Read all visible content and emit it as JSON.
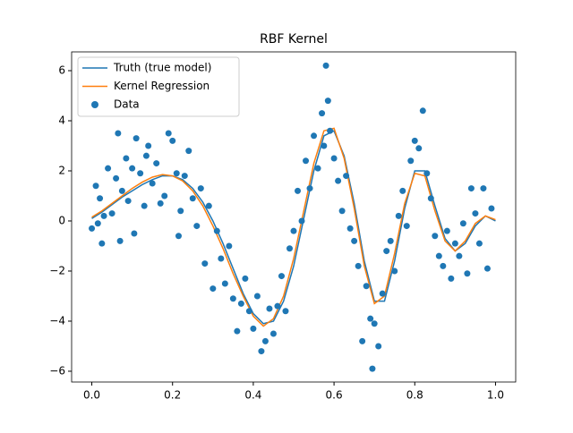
{
  "chart_data": {
    "type": "line",
    "title": "RBF Kernel",
    "xlim": [
      -0.05,
      1.05
    ],
    "ylim": [
      -6.43,
      6.75
    ],
    "xticks": [
      {
        "value": 0,
        "label": "0.0"
      },
      0.2,
      0.4,
      0.6,
      0.8,
      {
        "value": 1,
        "label": "1.0"
      }
    ],
    "yticks": [
      {
        "value": -6,
        "label": "−6"
      },
      {
        "value": -4,
        "label": "−4"
      },
      {
        "value": -2,
        "label": "−2"
      },
      0,
      2,
      4,
      6
    ],
    "legend": "upper left",
    "series": [
      {
        "name": "Truth (true model)",
        "color": "#1f77b4",
        "style": "line",
        "x": [
          0,
          0.025,
          0.05,
          0.075,
          0.1,
          0.125,
          0.15,
          0.175,
          0.2,
          0.225,
          0.25,
          0.275,
          0.3,
          0.325,
          0.35,
          0.375,
          0.4,
          0.425,
          0.45,
          0.475,
          0.5,
          0.525,
          0.55,
          0.575,
          0.6,
          0.625,
          0.65,
          0.675,
          0.7,
          0.725,
          0.75,
          0.775,
          0.8,
          0.825,
          0.85,
          0.875,
          0.9,
          0.925,
          0.95,
          0.975,
          1
        ],
        "values": [
          0.1,
          0.35,
          0.65,
          0.95,
          1.2,
          1.45,
          1.65,
          1.8,
          1.8,
          1.65,
          1.3,
          0.75,
          0.0,
          -0.9,
          -1.9,
          -2.9,
          -3.7,
          -4.1,
          -4.0,
          -3.2,
          -1.8,
          0.1,
          2.0,
          3.4,
          3.6,
          2.6,
          0.7,
          -1.6,
          -3.2,
          -3.2,
          -1.6,
          0.5,
          2.0,
          2.0,
          0.6,
          -0.7,
          -1.2,
          -0.9,
          -0.2,
          0.2,
          0.0
        ]
      },
      {
        "name": "Kernel Regression",
        "color": "#ff7f0e",
        "style": "line",
        "x": [
          0,
          0.025,
          0.05,
          0.075,
          0.1,
          0.125,
          0.15,
          0.175,
          0.2,
          0.225,
          0.25,
          0.275,
          0.3,
          0.325,
          0.35,
          0.375,
          0.4,
          0.425,
          0.45,
          0.475,
          0.5,
          0.525,
          0.55,
          0.575,
          0.6,
          0.625,
          0.65,
          0.675,
          0.7,
          0.725,
          0.75,
          0.775,
          0.8,
          0.825,
          0.85,
          0.875,
          0.9,
          0.925,
          0.95,
          0.975,
          1
        ],
        "values": [
          0.15,
          0.4,
          0.7,
          1.0,
          1.3,
          1.55,
          1.75,
          1.85,
          1.8,
          1.6,
          1.2,
          0.6,
          -0.2,
          -1.1,
          -2.1,
          -3.0,
          -3.8,
          -4.2,
          -3.9,
          -3.0,
          -1.5,
          0.4,
          2.3,
          3.6,
          3.7,
          2.5,
          0.5,
          -1.8,
          -3.3,
          -3.0,
          -1.3,
          0.7,
          1.9,
          1.8,
          0.4,
          -0.8,
          -1.2,
          -0.8,
          -0.1,
          0.2,
          0.05
        ]
      },
      {
        "name": "Data",
        "color": "#1f77b4",
        "style": "scatter",
        "x": [
          0,
          0.01,
          0.015,
          0.02,
          0.025,
          0.03,
          0.04,
          0.05,
          0.06,
          0.065,
          0.07,
          0.075,
          0.085,
          0.09,
          0.1,
          0.105,
          0.11,
          0.12,
          0.13,
          0.135,
          0.14,
          0.15,
          0.16,
          0.17,
          0.18,
          0.19,
          0.2,
          0.21,
          0.215,
          0.22,
          0.23,
          0.24,
          0.25,
          0.26,
          0.27,
          0.28,
          0.29,
          0.3,
          0.31,
          0.32,
          0.33,
          0.34,
          0.35,
          0.36,
          0.37,
          0.38,
          0.39,
          0.4,
          0.41,
          0.42,
          0.43,
          0.44,
          0.45,
          0.46,
          0.47,
          0.48,
          0.49,
          0.5,
          0.51,
          0.52,
          0.53,
          0.54,
          0.55,
          0.56,
          0.57,
          0.575,
          0.58,
          0.585,
          0.59,
          0.6,
          0.61,
          0.62,
          0.63,
          0.64,
          0.65,
          0.66,
          0.67,
          0.68,
          0.69,
          0.695,
          0.7,
          0.71,
          0.72,
          0.73,
          0.74,
          0.75,
          0.76,
          0.77,
          0.78,
          0.79,
          0.8,
          0.81,
          0.82,
          0.83,
          0.84,
          0.85,
          0.86,
          0.87,
          0.88,
          0.89,
          0.9,
          0.91,
          0.92,
          0.93,
          0.94,
          0.95,
          0.96,
          0.97,
          0.98,
          0.99
        ],
        "values": [
          -0.3,
          1.4,
          -0.1,
          0.9,
          -0.9,
          0.2,
          2.1,
          0.3,
          1.7,
          3.5,
          -0.8,
          1.2,
          2.5,
          0.8,
          2.1,
          -0.5,
          3.3,
          1.9,
          0.6,
          2.6,
          3.0,
          1.5,
          2.3,
          0.7,
          1.0,
          3.5,
          3.2,
          1.9,
          -0.6,
          0.4,
          1.8,
          2.8,
          0.9,
          -0.2,
          1.3,
          -1.7,
          0.6,
          -2.7,
          -0.4,
          -1.5,
          -2.5,
          -1.0,
          -3.1,
          -4.4,
          -3.3,
          -2.3,
          -3.6,
          -4.3,
          -3.0,
          -5.2,
          -4.8,
          -3.5,
          -4.5,
          -3.4,
          -2.2,
          -3.6,
          -1.1,
          -0.4,
          1.2,
          0.0,
          2.4,
          1.3,
          3.4,
          2.1,
          4.3,
          3.0,
          6.2,
          4.8,
          3.6,
          2.5,
          1.6,
          0.4,
          1.8,
          -0.3,
          -0.8,
          -1.8,
          -4.8,
          -2.6,
          -3.9,
          -5.9,
          -4.1,
          -5.0,
          -2.9,
          -1.2,
          -0.8,
          -2.0,
          0.2,
          1.2,
          -0.2,
          2.4,
          3.2,
          2.9,
          4.4,
          1.9,
          0.9,
          -0.6,
          -1.4,
          -1.8,
          -0.4,
          -2.3,
          -0.9,
          -1.4,
          -0.1,
          -2.1,
          1.3,
          0.3,
          -0.9,
          1.3,
          -1.9,
          0.5
        ]
      }
    ]
  }
}
